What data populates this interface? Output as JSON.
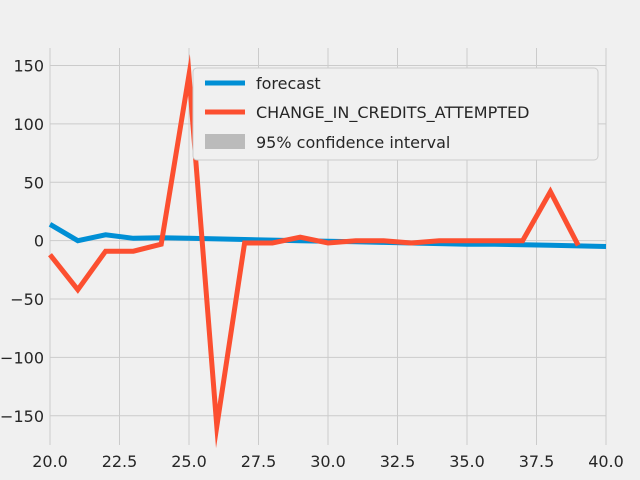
{
  "chart_data": {
    "type": "line",
    "title": "",
    "xlabel": "",
    "ylabel": "",
    "xlim": [
      20.0,
      40.0
    ],
    "ylim": [
      -175,
      165
    ],
    "grid": true,
    "legend_placement": "upper-center",
    "x_ticks": [
      20.0,
      22.5,
      25.0,
      27.5,
      30.0,
      32.5,
      35.0,
      37.5,
      40.0
    ],
    "x_tick_labels": [
      "20.0",
      "22.5",
      "25.0",
      "27.5",
      "30.0",
      "32.5",
      "35.0",
      "37.5",
      "40.0"
    ],
    "y_ticks": [
      150,
      100,
      50,
      0,
      -50,
      -100,
      -150
    ],
    "y_tick_labels": [
      "150",
      "100",
      "50",
      "0",
      "−50",
      "−100",
      "−150"
    ],
    "series": [
      {
        "name": "forecast",
        "color": "#008fd5",
        "x": [
          20,
          21,
          22,
          23,
          24,
          25,
          26,
          27,
          28,
          29,
          30,
          31,
          32,
          33,
          34,
          35,
          36,
          37,
          38,
          39,
          40
        ],
        "y": [
          14,
          0,
          5,
          2,
          2.5,
          2,
          1.5,
          1,
          0.5,
          0,
          -0.5,
          -1,
          -1.5,
          -2,
          -2.5,
          -3,
          -3,
          -3.5,
          -4,
          -4.5,
          -5
        ]
      },
      {
        "name": "CHANGE_IN_CREDITS_ATTEMPTED",
        "color": "#fc4f30",
        "x": [
          20,
          21,
          22,
          23,
          24,
          25,
          26,
          27,
          28,
          29,
          30,
          31,
          32,
          33,
          34,
          35,
          36,
          37,
          38,
          39
        ],
        "y": [
          -12,
          -42,
          -9,
          -9,
          -3,
          142,
          -159,
          -2,
          -2,
          3,
          -2,
          0,
          0,
          -2,
          0,
          0,
          0,
          0,
          42,
          -4
        ]
      }
    ],
    "confidence_band": {
      "name": "95% confidence interval",
      "color": "#bbbbbb"
    }
  }
}
